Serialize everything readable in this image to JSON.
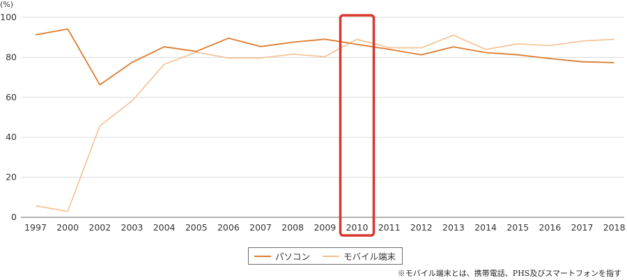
{
  "chart_data": {
    "type": "line",
    "categories": [
      "1997",
      "2000",
      "2002",
      "2003",
      "2004",
      "2005",
      "2006",
      "2007",
      "2008",
      "2009",
      "2010",
      "2011",
      "2012",
      "2013",
      "2014",
      "2015",
      "2016",
      "2017",
      "2018"
    ],
    "series": [
      {
        "name": "パソコン",
        "color": "#dd7a2c",
        "values": [
          91.3,
          94.2,
          66.3,
          77.5,
          85.3,
          83.0,
          89.6,
          85.4,
          87.6,
          89.1,
          86.5,
          84.0,
          81.3,
          85.3,
          82.4,
          81.3,
          79.4,
          77.8,
          77.4
        ]
      },
      {
        "name": "モバイル端末",
        "color": "#f4bf90",
        "values": [
          5.8,
          3.0,
          45.7,
          58.2,
          76.5,
          82.6,
          79.7,
          79.7,
          81.6,
          80.4,
          89.1,
          84.8,
          84.8,
          91.1,
          84.0,
          86.8,
          85.9,
          88.2,
          89.1
        ]
      }
    ],
    "y_unit": "(%)",
    "ylim": [
      0,
      100
    ],
    "yticks": [
      "0",
      "20",
      "40",
      "60",
      "80",
      "100"
    ],
    "grid": "horizontal",
    "legend_position": "bottom-center",
    "highlight_category": "2010",
    "highlight_color": "#d9362b",
    "axis_color": "#666666",
    "grid_color": "#d9d9d9"
  },
  "footnote": "※モバイル端末とは、携帯電話、PHS及びスマートフォンを指す"
}
